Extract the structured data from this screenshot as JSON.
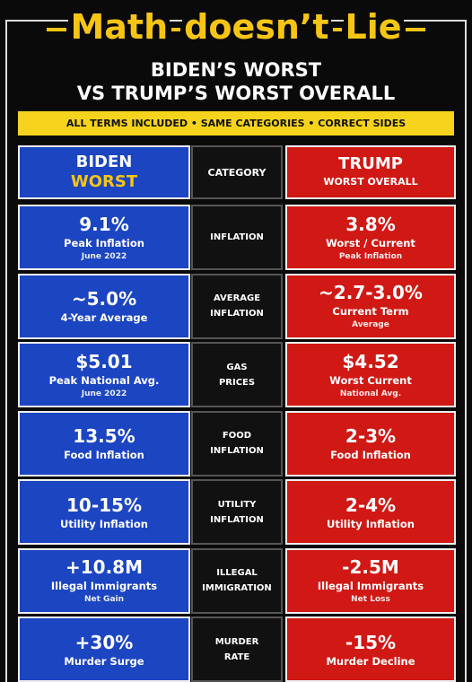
{
  "header": {
    "title_words": [
      "Math",
      "doesn’t",
      "Lie"
    ],
    "subtitle": [
      "BIDEN’S WORST",
      "VS TRUMP’S WORST OVERALL"
    ],
    "banner": "ALL TERMS INCLUDED • SAME CATEGORIES • CORRECT SIDES"
  },
  "table": {
    "columns": {
      "left": [
        "BIDEN",
        "WORST"
      ],
      "middle": "CATEGORY",
      "right": [
        "TRUMP",
        "WORST OVERALL"
      ]
    },
    "rows": [
      {
        "left": {
          "value": "9.1%",
          "label": "Peak Inflation",
          "note": "June 2022"
        },
        "category": [
          "INFLATION"
        ],
        "right": {
          "value": "3.8%",
          "label": "Worst / Current",
          "note": "Peak Inflation"
        }
      },
      {
        "left": {
          "value": "~5.0%",
          "label": "4-Year Average"
        },
        "category": [
          "AVERAGE",
          "INFLATION"
        ],
        "right": {
          "value": "~2.7-3.0%",
          "label": "Current Term",
          "note": "Average"
        }
      },
      {
        "left": {
          "value": "$5.01",
          "label": "Peak National Avg.",
          "note": "June 2022"
        },
        "category": [
          "GAS",
          "PRICES"
        ],
        "right": {
          "value": "$4.52",
          "label": "Worst Current",
          "note": "National Avg."
        }
      },
      {
        "left": {
          "value": "13.5%",
          "label": "Food Inflation"
        },
        "category": [
          "FOOD",
          "INFLATION"
        ],
        "right": {
          "value": "2-3%",
          "label": "Food Inflation"
        }
      },
      {
        "left": {
          "value": "10-15%",
          "label": "Utility Inflation"
        },
        "category": [
          "UTILITY",
          "INFLATION"
        ],
        "right": {
          "value": "2-4%",
          "label": "Utility Inflation"
        }
      },
      {
        "left": {
          "value": "+10.8M",
          "label": "Illegal Immigrants",
          "note": "Net Gain"
        },
        "category": [
          "ILLEGAL",
          "IMMIGRATION"
        ],
        "right": {
          "value": "-2.5M",
          "label": "Illegal Immigrants",
          "note": "Net Loss"
        }
      },
      {
        "left": {
          "value": "+30%",
          "label": "Murder Surge"
        },
        "category": [
          "MURDER",
          "RATE"
        ],
        "right": {
          "value": "-15%",
          "label": "Murder Decline"
        }
      }
    ]
  }
}
